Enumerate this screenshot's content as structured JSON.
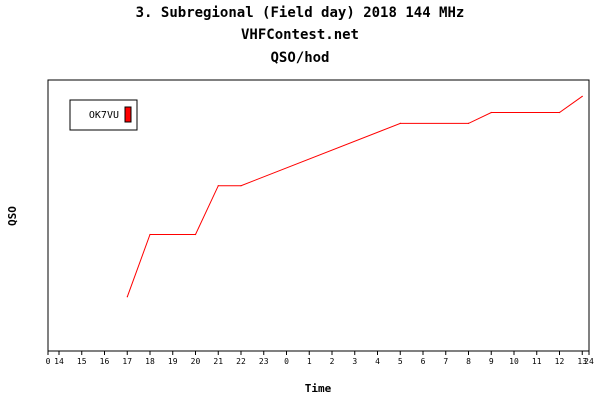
{
  "header": {
    "title_line1": "3. Subregional (Field day) 2018 144 MHz",
    "title_line2": "VHFContest.net",
    "title_line3": "QSO/hod"
  },
  "chart_data": {
    "type": "line",
    "title": "3. Subregional (Field day) 2018 144 MHz",
    "xlabel": "Time",
    "ylabel": "QSO",
    "x_tick_labels": [
      "0",
      "14",
      "15",
      "16",
      "17",
      "18",
      "19",
      "20",
      "21",
      "22",
      "23",
      "0",
      "1",
      "2",
      "3",
      "4",
      "5",
      "6",
      "7",
      "8",
      "9",
      "10",
      "11",
      "12",
      "13",
      "24"
    ],
    "x_range_hours_elapsed_from_14": [
      -0.5,
      24
    ],
    "grid": false,
    "legend_position": "top-left",
    "series": [
      {
        "name": "OK7VU",
        "color": "#ff0000",
        "x": [
          "17:00",
          "18:00",
          "20:00",
          "21:00",
          "22:00",
          "5:00",
          "8:00",
          "9:00",
          "12:00",
          "13:00"
        ],
        "y_relative": [
          0.2,
          0.43,
          0.43,
          0.61,
          0.61,
          0.84,
          0.84,
          0.88,
          0.88,
          0.94
        ]
      }
    ]
  },
  "colors": {
    "series": "#ff0000",
    "axis": "#000000",
    "background": "#ffffff"
  }
}
